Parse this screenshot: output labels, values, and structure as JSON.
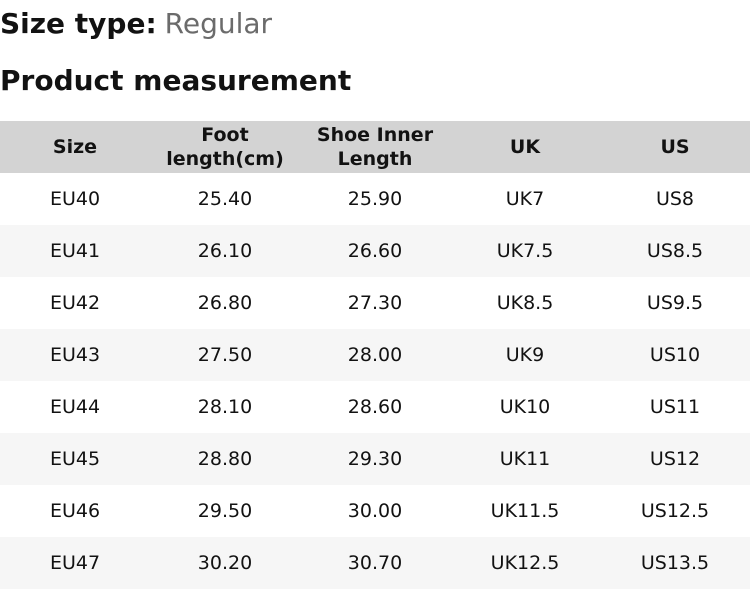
{
  "size_type": {
    "label": "Size type:",
    "value": "Regular"
  },
  "section_title": "Product measurement",
  "table": {
    "columns": [
      "Size",
      "Foot\nlength(cm)",
      "Shoe Inner\nLength",
      "UK",
      "US"
    ],
    "rows": [
      [
        "EU40",
        "25.40",
        "25.90",
        "UK7",
        "US8"
      ],
      [
        "EU41",
        "26.10",
        "26.60",
        "UK7.5",
        "US8.5"
      ],
      [
        "EU42",
        "26.80",
        "27.30",
        "UK8.5",
        "US9.5"
      ],
      [
        "EU43",
        "27.50",
        "28.00",
        "UK9",
        "US10"
      ],
      [
        "EU44",
        "28.10",
        "28.60",
        "UK10",
        "US11"
      ],
      [
        "EU45",
        "28.80",
        "29.30",
        "UK11",
        "US12"
      ],
      [
        "EU46",
        "29.50",
        "30.00",
        "UK11.5",
        "US12.5"
      ],
      [
        "EU47",
        "30.20",
        "30.70",
        "UK12.5",
        "US13.5"
      ]
    ]
  },
  "colors": {
    "header_bg": "#d3d3d3",
    "alt_row_bg": "#f6f6f6",
    "text": "#121212",
    "muted": "#6b6b6b"
  }
}
